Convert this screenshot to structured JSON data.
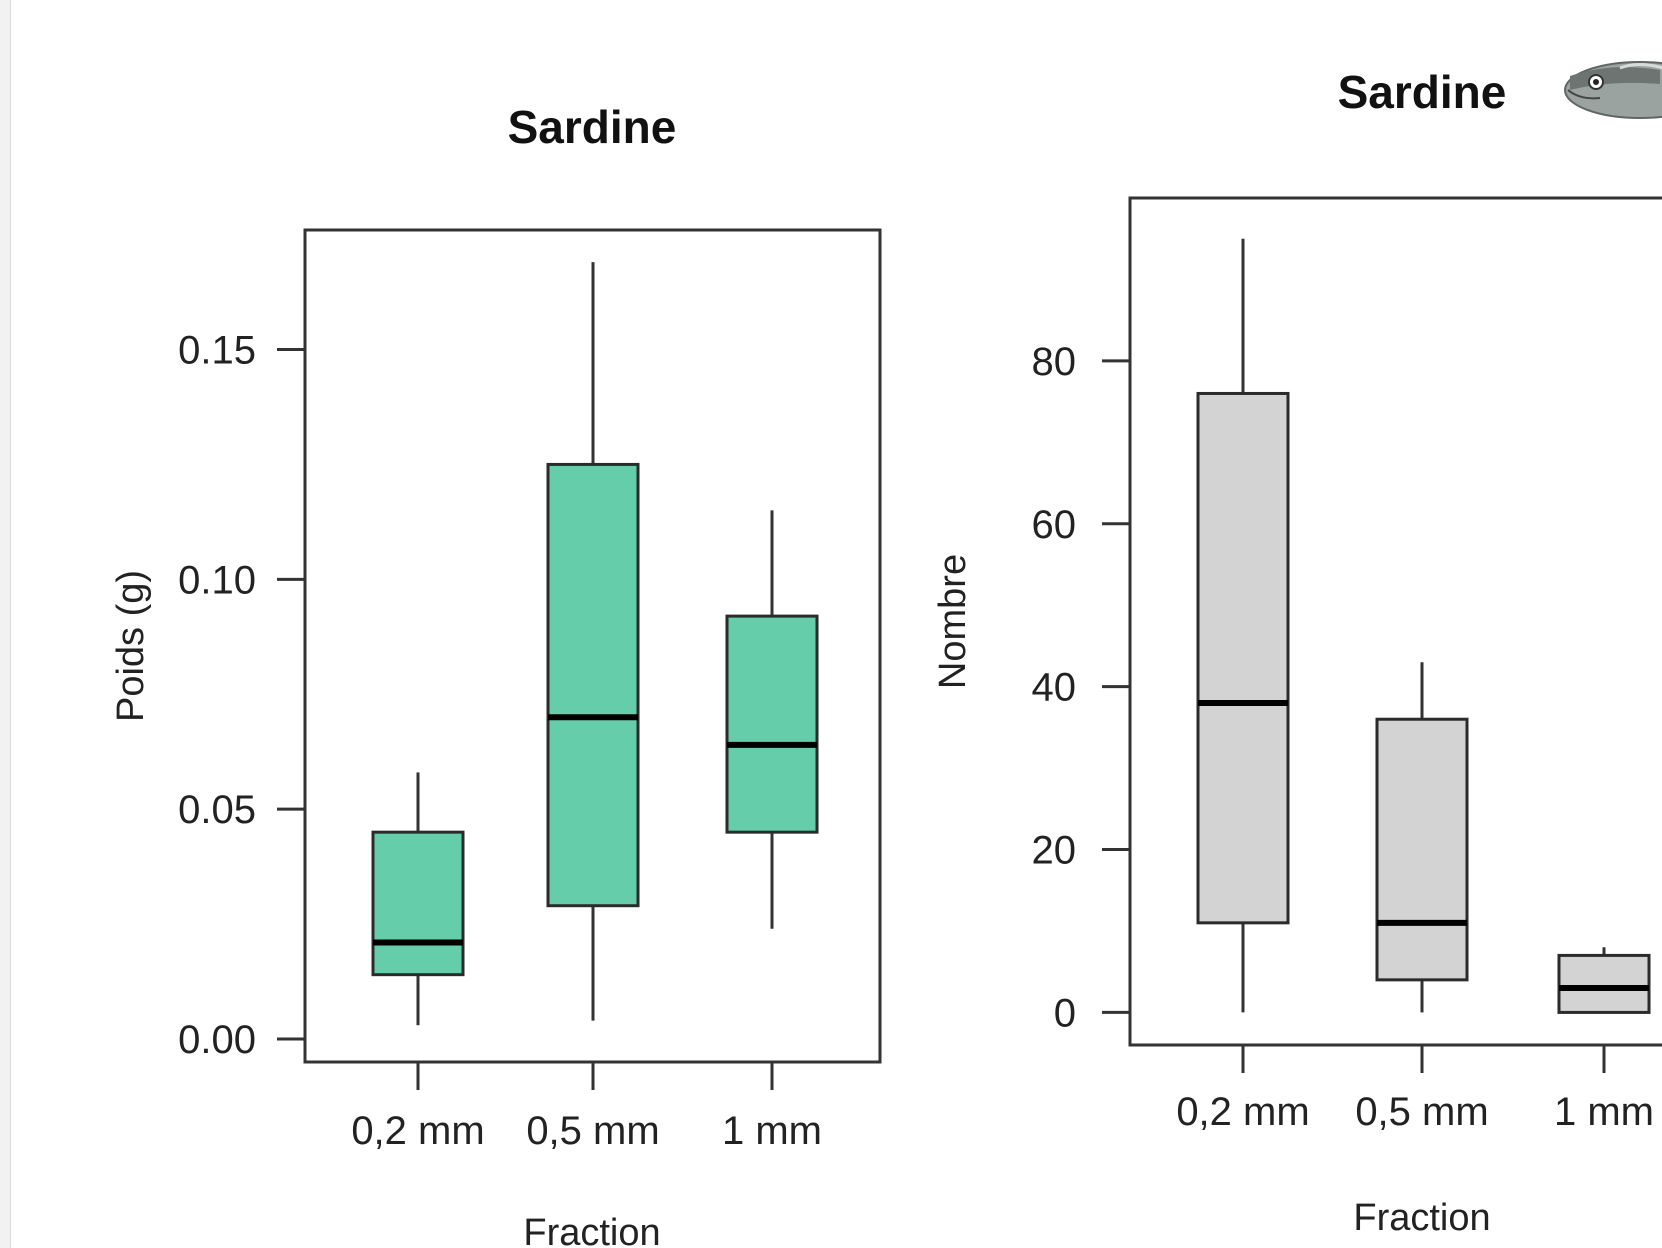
{
  "chart_data": [
    {
      "type": "boxplot",
      "title": "Sardine",
      "xlabel": "Fraction",
      "ylabel": "Poids (g)",
      "categories": [
        "0,2 mm",
        "0,5 mm",
        "1 mm"
      ],
      "ylim": [
        -0.005,
        0.176
      ],
      "yticks": [
        0.0,
        0.05,
        0.1,
        0.15
      ],
      "ytick_labels": [
        "0.00",
        "0.05",
        "0.10",
        "0.15"
      ],
      "fill_color": "#66cdaa",
      "grid": false,
      "boxes": [
        {
          "category": "0,2 mm",
          "whisker_low": 0.003,
          "q1": 0.014,
          "median": 0.021,
          "q3": 0.045,
          "whisker_high": 0.058
        },
        {
          "category": "0,5 mm",
          "whisker_low": 0.004,
          "q1": 0.029,
          "median": 0.07,
          "q3": 0.125,
          "whisker_high": 0.169
        },
        {
          "category": "1 mm",
          "whisker_low": 0.024,
          "q1": 0.045,
          "median": 0.064,
          "q3": 0.092,
          "whisker_high": 0.115
        }
      ]
    },
    {
      "type": "boxplot",
      "title": "Sardine",
      "xlabel": "Fraction",
      "ylabel": "Nombre",
      "categories": [
        "0,2 mm",
        "0,5 mm",
        "1 mm"
      ],
      "ylim": [
        -4,
        100
      ],
      "yticks": [
        0,
        20,
        40,
        60,
        80
      ],
      "ytick_labels": [
        "0",
        "20",
        "40",
        "60",
        "80"
      ],
      "fill_color": "#d3d3d3",
      "grid": false,
      "boxes": [
        {
          "category": "0,2 mm",
          "whisker_low": 0,
          "q1": 11,
          "median": 38,
          "q3": 76,
          "whisker_high": 95
        },
        {
          "category": "0,5 mm",
          "whisker_low": 0,
          "q1": 4,
          "median": 11,
          "q3": 36,
          "whisker_high": 43
        },
        {
          "category": "1 mm",
          "whisker_low": 0,
          "q1": 0,
          "median": 3,
          "q3": 7,
          "whisker_high": 8
        }
      ]
    }
  ],
  "icons": {
    "fish": "sardine-fish-icon"
  }
}
